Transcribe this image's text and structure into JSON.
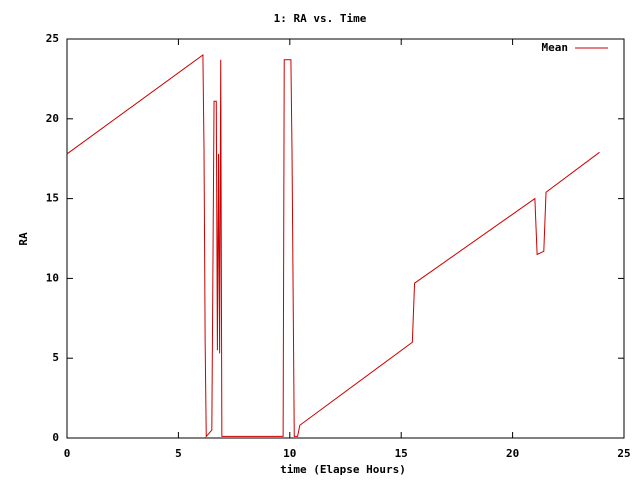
{
  "chart_data": {
    "type": "line",
    "title": "1: RA vs. Time",
    "x_label": "time (Elapse Hours)",
    "y_label": "RA",
    "x": [
      0,
      6.1,
      6.15,
      6.2,
      6.25,
      6.5,
      6.6,
      6.7,
      6.75,
      6.8,
      6.85,
      6.9,
      6.95,
      9.7,
      9.75,
      10.05,
      10.1,
      10.2,
      10.35,
      10.45,
      15.5,
      15.6,
      21.0,
      21.1,
      21.4,
      21.5,
      23.9
    ],
    "series": [
      {
        "name": "Mean",
        "color": "#cc0000",
        "values": [
          17.8,
          24.0,
          18.0,
          6.0,
          0.1,
          0.5,
          21.1,
          21.1,
          5.5,
          17.8,
          5.3,
          23.7,
          0.1,
          0.1,
          23.7,
          23.7,
          17.8,
          0.1,
          0.1,
          0.8,
          6.0,
          9.7,
          15.0,
          11.5,
          11.7,
          15.4,
          17.9
        ]
      }
    ],
    "xlim": [
      0,
      25
    ],
    "xticks": [
      0,
      5,
      10,
      15,
      20,
      25
    ],
    "ylim": [
      0,
      25
    ],
    "yticks": [
      0,
      5,
      10,
      15,
      20,
      25
    ],
    "grid": false,
    "legend": "top-right"
  }
}
